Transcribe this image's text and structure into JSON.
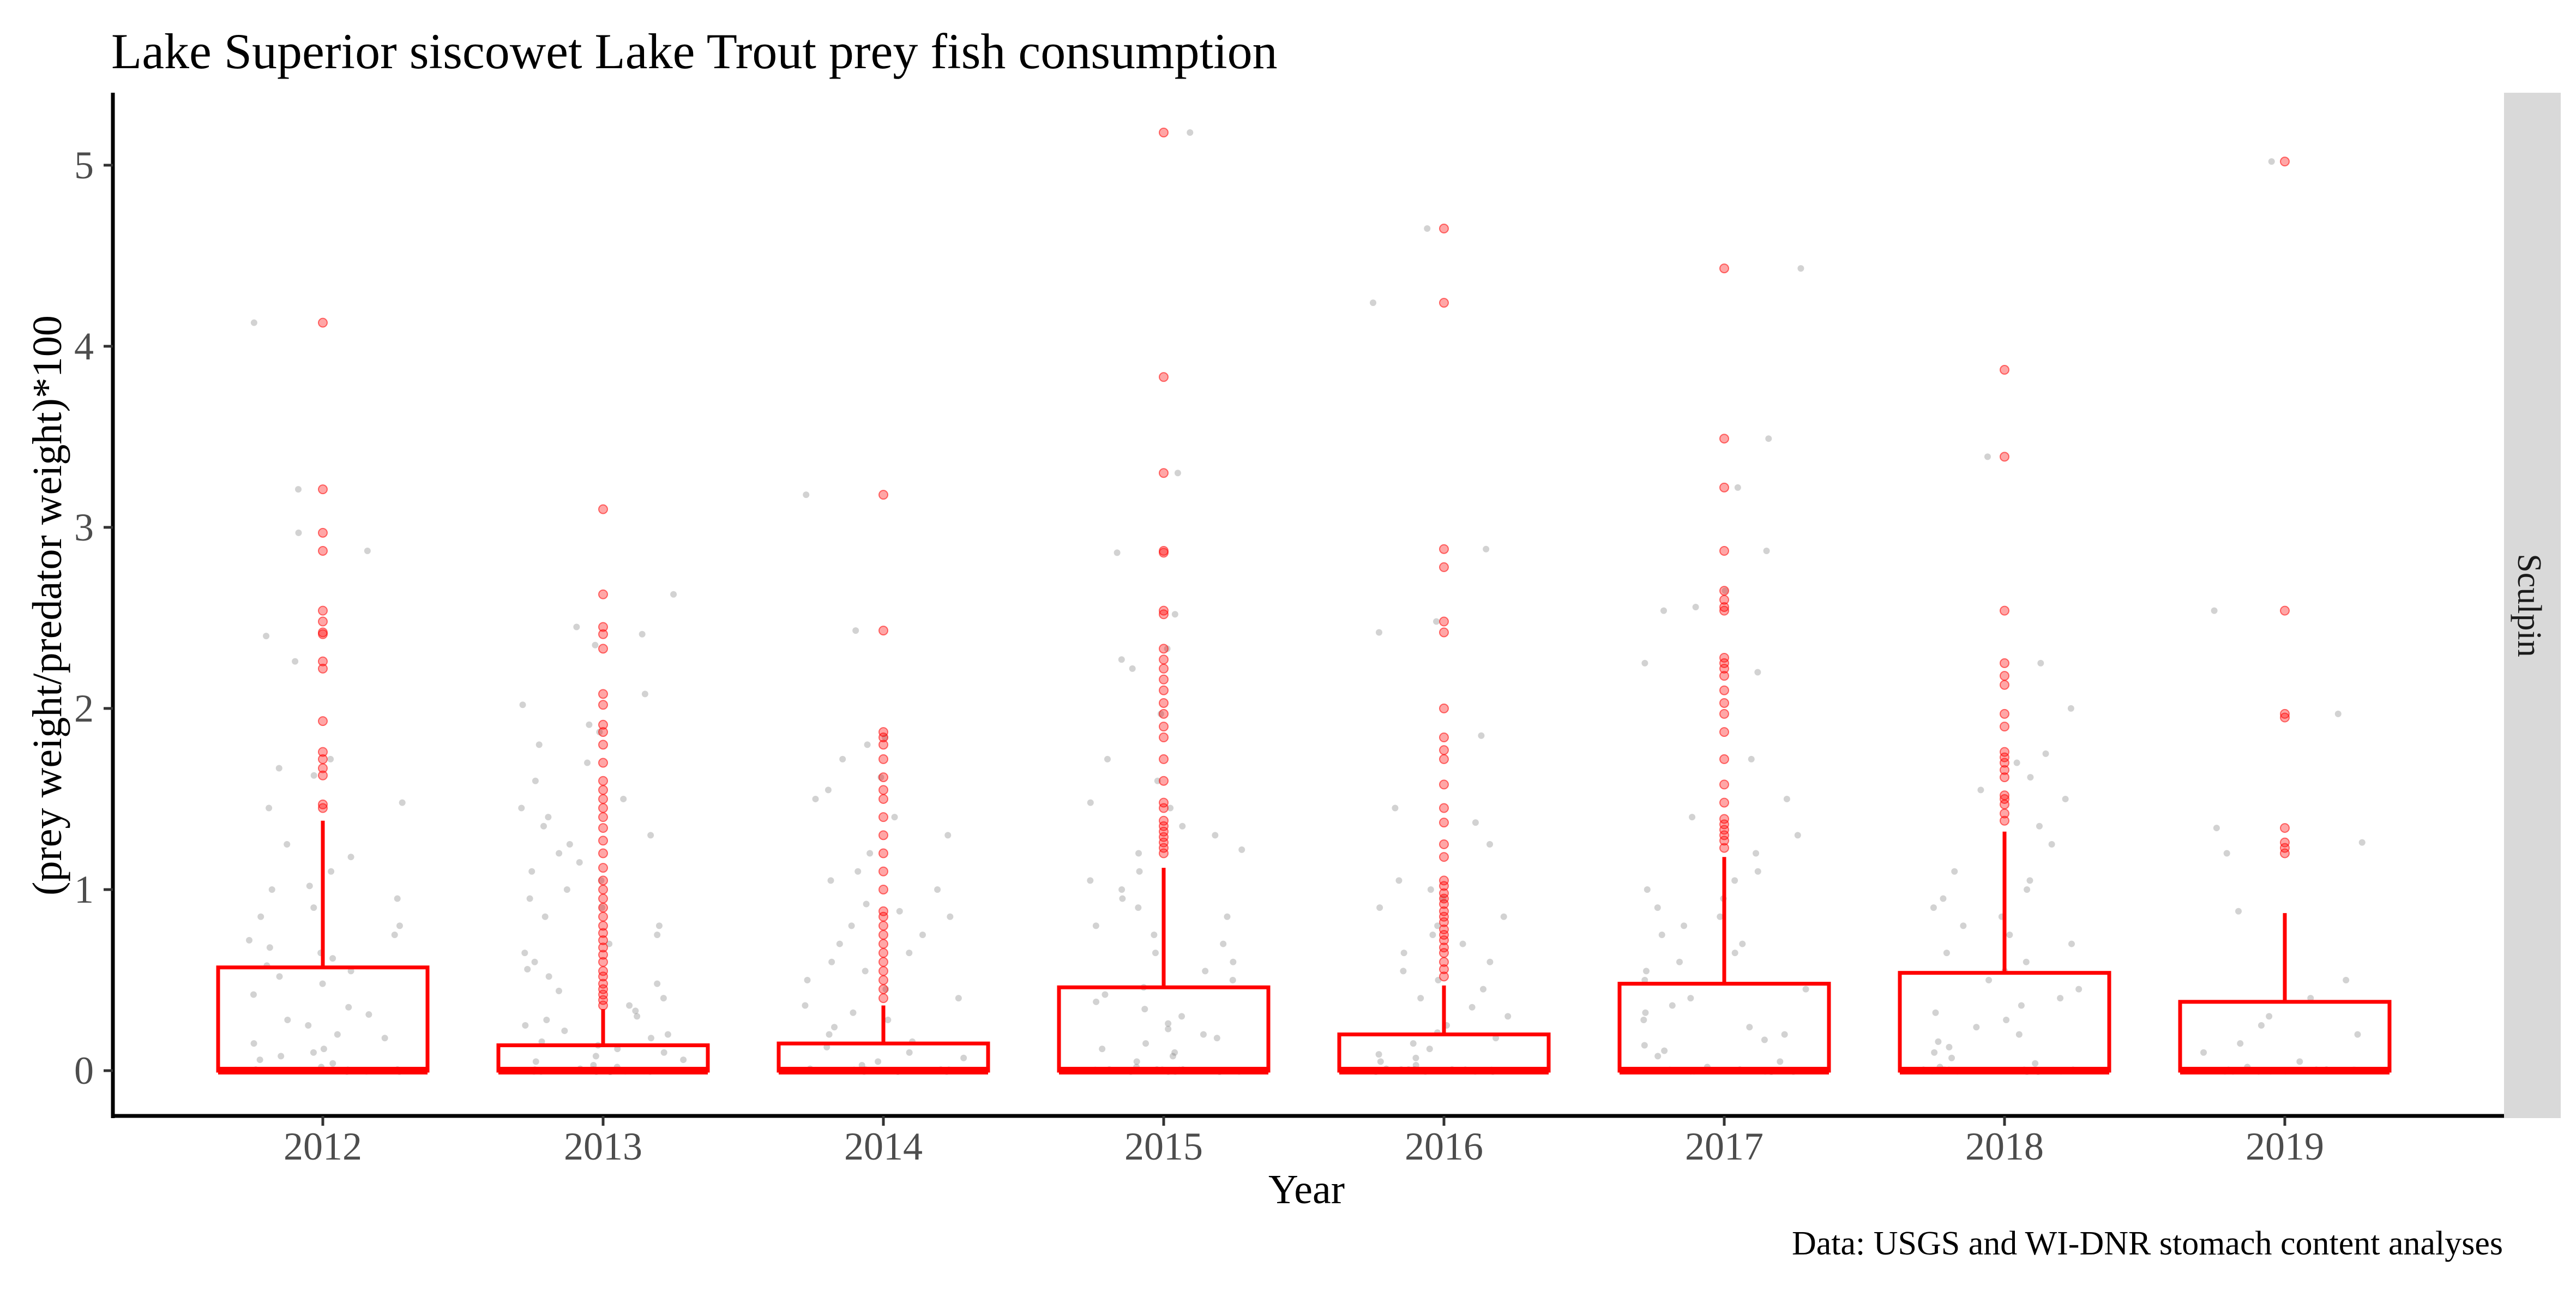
{
  "chart_data": {
    "type": "box",
    "title": "Lake Superior siscowet Lake Trout prey fish consumption",
    "xlabel": "Year",
    "ylabel": "(prey weight/predator weight)*100",
    "caption": "Data: USGS and WI-DNR stomach content analyses",
    "facet_label": "Sculpin",
    "ylim": [
      -0.25,
      5.4
    ],
    "yticks": [
      0,
      1,
      2,
      3,
      4,
      5
    ],
    "categories": [
      "2012",
      "2013",
      "2014",
      "2015",
      "2016",
      "2017",
      "2018",
      "2019"
    ],
    "box_color": "#ff0000",
    "jitter_color": "#808080",
    "grid": false,
    "legend": "none",
    "boxes": [
      {
        "year": "2012",
        "min": 0,
        "q1": 0,
        "median": 0,
        "q3": 0.57,
        "whisker_high": 1.38,
        "outliers": [
          1.45,
          1.47,
          1.63,
          1.67,
          1.72,
          1.76,
          1.93,
          2.22,
          2.26,
          2.41,
          2.42,
          2.48,
          2.54,
          2.87,
          2.97,
          3.21,
          4.13
        ]
      },
      {
        "year": "2013",
        "min": 0,
        "q1": 0,
        "median": 0,
        "q3": 0.14,
        "whisker_high": 0.34,
        "outliers": [
          0.36,
          0.39,
          0.42,
          0.45,
          0.48,
          0.52,
          0.55,
          0.6,
          0.64,
          0.68,
          0.72,
          0.76,
          0.8,
          0.85,
          0.9,
          0.95,
          1.0,
          1.05,
          1.12,
          1.2,
          1.27,
          1.34,
          1.4,
          1.45,
          1.5,
          1.55,
          1.6,
          1.7,
          1.8,
          1.87,
          1.91,
          2.02,
          2.08,
          2.33,
          2.41,
          2.45,
          2.63,
          3.1
        ]
      },
      {
        "year": "2014",
        "min": 0,
        "q1": 0,
        "median": 0,
        "q3": 0.15,
        "whisker_high": 0.36,
        "outliers": [
          0.4,
          0.45,
          0.5,
          0.55,
          0.6,
          0.65,
          0.7,
          0.75,
          0.8,
          0.85,
          0.88,
          1.0,
          1.1,
          1.2,
          1.3,
          1.4,
          1.5,
          1.55,
          1.62,
          1.72,
          1.8,
          1.84,
          1.87,
          2.43,
          3.18
        ]
      },
      {
        "year": "2015",
        "min": 0,
        "q1": 0,
        "median": 0,
        "q3": 0.46,
        "whisker_high": 1.12,
        "outliers": [
          1.2,
          1.23,
          1.26,
          1.29,
          1.32,
          1.35,
          1.38,
          1.45,
          1.48,
          1.6,
          1.72,
          1.84,
          1.9,
          1.97,
          2.03,
          2.1,
          2.16,
          2.22,
          2.27,
          2.33,
          2.52,
          2.54,
          2.86,
          2.87,
          3.3,
          3.83,
          5.18
        ]
      },
      {
        "year": "2016",
        "min": 0,
        "q1": 0,
        "median": 0,
        "q3": 0.2,
        "whisker_high": 0.47,
        "outliers": [
          0.52,
          0.56,
          0.6,
          0.65,
          0.68,
          0.72,
          0.75,
          0.78,
          0.82,
          0.85,
          0.88,
          0.92,
          0.95,
          0.98,
          1.02,
          1.05,
          1.18,
          1.25,
          1.37,
          1.45,
          1.58,
          1.72,
          1.77,
          1.84,
          2.0,
          2.42,
          2.48,
          2.78,
          2.88,
          4.24,
          4.65
        ]
      },
      {
        "year": "2017",
        "min": 0,
        "q1": 0,
        "median": 0,
        "q3": 0.48,
        "whisker_high": 1.18,
        "outliers": [
          1.23,
          1.27,
          1.3,
          1.33,
          1.36,
          1.39,
          1.48,
          1.58,
          1.72,
          1.87,
          1.97,
          2.03,
          2.1,
          2.18,
          2.22,
          2.25,
          2.28,
          2.54,
          2.56,
          2.6,
          2.65,
          2.87,
          3.22,
          3.49,
          4.43
        ]
      },
      {
        "year": "2018",
        "min": 0,
        "q1": 0,
        "median": 0,
        "q3": 0.54,
        "whisker_high": 1.32,
        "outliers": [
          1.38,
          1.42,
          1.47,
          1.5,
          1.52,
          1.62,
          1.66,
          1.7,
          1.73,
          1.76,
          1.9,
          1.97,
          2.13,
          2.18,
          2.25,
          2.54,
          3.39,
          3.87
        ]
      },
      {
        "year": "2019",
        "min": 0,
        "q1": 0,
        "median": 0,
        "q3": 0.38,
        "whisker_high": 0.87,
        "outliers": [
          1.2,
          1.23,
          1.26,
          1.34,
          1.95,
          1.97,
          2.54,
          5.02
        ]
      }
    ],
    "jitter": [
      {
        "year": "2012",
        "values": [
          0.02,
          0.04,
          0.06,
          0.08,
          0.1,
          0.12,
          0.15,
          0.18,
          0.2,
          0.25,
          0.28,
          0.31,
          0.35,
          0.42,
          0.48,
          0.52,
          0.55,
          0.58,
          0.62,
          0.65,
          0.68,
          0.72,
          0.75,
          0.8,
          0.85,
          0.9,
          0.95,
          1.0,
          1.02,
          1.1,
          1.18,
          1.25,
          1.45,
          1.48,
          1.63,
          1.67,
          1.72,
          2.26,
          2.4,
          2.87,
          2.97,
          3.21,
          4.13
        ]
      },
      {
        "year": "2013",
        "values": [
          0.01,
          0.02,
          0.03,
          0.05,
          0.06,
          0.08,
          0.1,
          0.12,
          0.14,
          0.16,
          0.18,
          0.2,
          0.22,
          0.25,
          0.28,
          0.3,
          0.33,
          0.36,
          0.4,
          0.44,
          0.48,
          0.52,
          0.56,
          0.6,
          0.65,
          0.7,
          0.75,
          0.8,
          0.85,
          0.9,
          0.95,
          1.0,
          1.05,
          1.1,
          1.15,
          1.2,
          1.25,
          1.3,
          1.35,
          1.4,
          1.45,
          1.5,
          1.6,
          1.7,
          1.8,
          1.87,
          1.91,
          2.02,
          2.08,
          2.35,
          2.41,
          2.45,
          2.63
        ]
      },
      {
        "year": "2014",
        "values": [
          0.01,
          0.03,
          0.05,
          0.07,
          0.1,
          0.13,
          0.16,
          0.2,
          0.24,
          0.28,
          0.32,
          0.36,
          0.4,
          0.45,
          0.5,
          0.55,
          0.6,
          0.65,
          0.7,
          0.75,
          0.8,
          0.85,
          0.88,
          0.92,
          1.0,
          1.05,
          1.1,
          1.2,
          1.3,
          1.4,
          1.5,
          1.55,
          1.62,
          1.72,
          1.8,
          1.84,
          2.43,
          3.18
        ]
      },
      {
        "year": "2015",
        "values": [
          0.02,
          0.05,
          0.08,
          0.1,
          0.12,
          0.15,
          0.18,
          0.2,
          0.23,
          0.26,
          0.3,
          0.34,
          0.38,
          0.42,
          0.46,
          0.5,
          0.55,
          0.6,
          0.65,
          0.7,
          0.75,
          0.8,
          0.85,
          0.9,
          0.95,
          1.0,
          1.05,
          1.1,
          1.2,
          1.22,
          1.3,
          1.35,
          1.45,
          1.48,
          1.6,
          1.72,
          1.97,
          2.22,
          2.27,
          2.33,
          2.52,
          2.86,
          3.3,
          5.18
        ]
      },
      {
        "year": "2016",
        "values": [
          0.01,
          0.03,
          0.05,
          0.07,
          0.09,
          0.12,
          0.15,
          0.18,
          0.21,
          0.25,
          0.3,
          0.35,
          0.4,
          0.45,
          0.5,
          0.55,
          0.6,
          0.65,
          0.7,
          0.75,
          0.8,
          0.85,
          0.9,
          0.95,
          1.0,
          1.05,
          1.25,
          1.37,
          1.45,
          1.85,
          2.42,
          2.48,
          2.88,
          4.24,
          4.65
        ]
      },
      {
        "year": "2017",
        "values": [
          0.02,
          0.05,
          0.08,
          0.11,
          0.14,
          0.17,
          0.2,
          0.24,
          0.28,
          0.32,
          0.36,
          0.4,
          0.45,
          0.5,
          0.55,
          0.6,
          0.65,
          0.7,
          0.75,
          0.8,
          0.85,
          0.9,
          0.95,
          1.0,
          1.05,
          1.1,
          1.2,
          1.3,
          1.4,
          1.5,
          1.72,
          2.2,
          2.25,
          2.54,
          2.56,
          2.65,
          2.87,
          3.22,
          3.49,
          4.43
        ]
      },
      {
        "year": "2018",
        "values": [
          0.02,
          0.04,
          0.07,
          0.1,
          0.13,
          0.16,
          0.2,
          0.24,
          0.28,
          0.32,
          0.36,
          0.4,
          0.45,
          0.5,
          0.55,
          0.6,
          0.65,
          0.7,
          0.75,
          0.8,
          0.85,
          0.9,
          0.95,
          1.0,
          1.05,
          1.1,
          1.25,
          1.35,
          1.5,
          1.55,
          1.62,
          1.7,
          1.75,
          2.0,
          2.25,
          3.39
        ]
      },
      {
        "year": "2019",
        "values": [
          0.02,
          0.05,
          0.1,
          0.15,
          0.2,
          0.25,
          0.3,
          0.4,
          0.5,
          0.88,
          1.2,
          1.26,
          1.34,
          1.97,
          2.54,
          5.02
        ]
      }
    ]
  }
}
